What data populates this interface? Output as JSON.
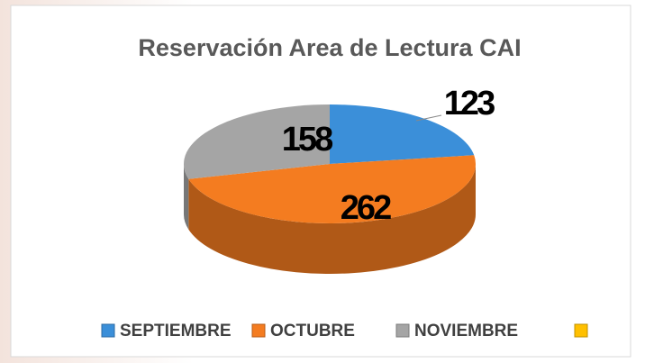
{
  "chart_data": {
    "type": "pie",
    "title": "Reservación Area de Lectura CAI",
    "categories": [
      "SEPTIEMBRE",
      "OCTUBRE",
      "NOVIEMBRE",
      null
    ],
    "values": [
      123,
      262,
      158,
      null
    ],
    "colors": [
      "#3b8fd9",
      "#f47c20",
      "#a5a5a5",
      "#ffc000"
    ],
    "legend": "bottom",
    "style": "3d"
  }
}
